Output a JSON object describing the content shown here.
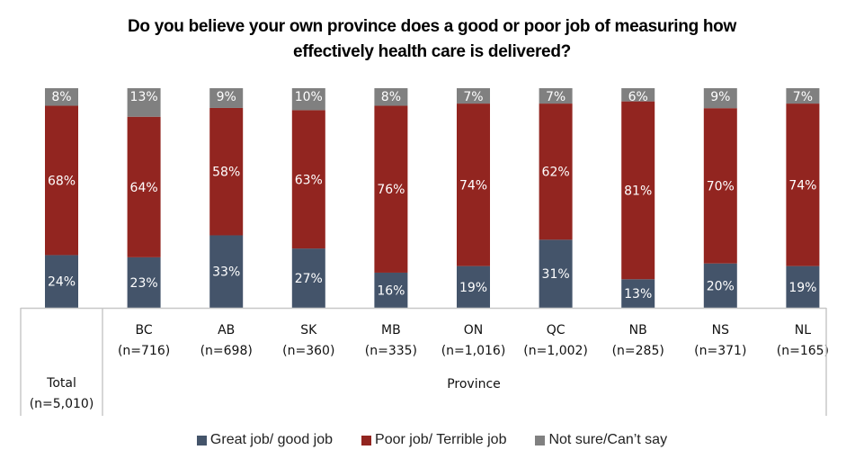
{
  "chart_data": {
    "type": "bar",
    "stacked": true,
    "percent": true,
    "title": "Do you believe your own province does a good or poor job of measuring how effectively health care is delivered?",
    "title_lines": [
      "Do you believe your own province does a good or poor job of measuring how",
      "effectively health care is delivered?"
    ],
    "xlabel": "",
    "ylabel": "",
    "ylim": [
      0,
      100
    ],
    "grid": false,
    "legend_position": "bottom",
    "categories": [
      {
        "name": "Total",
        "n": "(n=5,010)"
      },
      {
        "name": "BC",
        "n": "(n=716)"
      },
      {
        "name": "AB",
        "n": "(n=698)"
      },
      {
        "name": "SK",
        "n": "(n=360)"
      },
      {
        "name": "MB",
        "n": "(n=335)"
      },
      {
        "name": "ON",
        "n": "(n=1,016)"
      },
      {
        "name": "QC",
        "n": "(n=1,002)"
      },
      {
        "name": "NB",
        "n": "(n=285)"
      },
      {
        "name": "NS",
        "n": "(n=371)"
      },
      {
        "name": "NL",
        "n": "(n=165)"
      }
    ],
    "group_label": "Province",
    "series": [
      {
        "name": "Great job/ good job",
        "color": "#44546A",
        "values": [
          24,
          23,
          33,
          27,
          16,
          19,
          31,
          13,
          20,
          19
        ]
      },
      {
        "name": "Poor job/ Terrible job",
        "color": "#922520",
        "values": [
          68,
          64,
          58,
          63,
          76,
          74,
          62,
          81,
          70,
          74
        ]
      },
      {
        "name": "Not sure/Can’t say",
        "color": "#808080",
        "values": [
          8,
          13,
          9,
          10,
          8,
          7,
          7,
          6,
          9,
          7
        ]
      }
    ]
  }
}
